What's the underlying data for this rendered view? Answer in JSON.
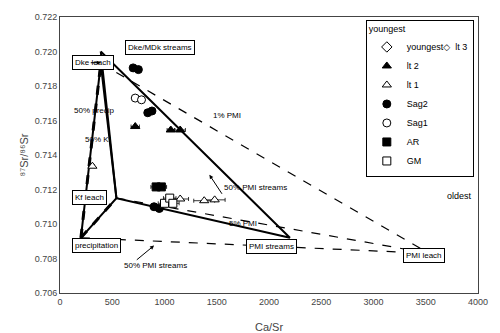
{
  "chart_data": {
    "type": "scatter",
    "xlabel": "Ca/Sr",
    "ylabel": "⁸⁷Sr/⁸⁶Sr",
    "xlim": [
      0,
      4000
    ],
    "ylim": [
      0.706,
      0.722
    ],
    "xticks": [
      0,
      500,
      1000,
      1500,
      2000,
      2500,
      3000,
      3500,
      4000
    ],
    "yticks": [
      0.706,
      0.708,
      {
        "value": 0.71,
        "label": "0.710"
      },
      0.712,
      0.714,
      0.716,
      0.718,
      {
        "value": 0.72,
        "label": "0.720"
      },
      0.722
    ],
    "grid": false,
    "legend": "upper right",
    "series": [
      {
        "type": "line",
        "line_style": "dashed",
        "color": "black",
        "x": [
          390,
          3530
        ],
        "y": [
          0.7193,
          0.7083
        ]
      },
      {
        "type": "line",
        "line_style": "dashed",
        "color": "black",
        "x": [
          540,
          3530
        ],
        "y": [
          0.7115,
          0.7083
        ]
      },
      {
        "type": "line",
        "line_style": "dashed",
        "color": "black",
        "x": [
          200,
          3530
        ],
        "y": [
          0.7092,
          0.7083
        ]
      },
      {
        "type": "line",
        "line_style": "solid",
        "color": "black",
        "x": [
          200,
          390,
          540,
          200
        ],
        "y": [
          0.7092,
          0.7193,
          0.7115,
          0.7092
        ]
      },
      {
        "type": "line",
        "line_style": "solid",
        "color": "black",
        "x": [
          390,
          2200,
          540,
          390
        ],
        "y": [
          0.72,
          0.7092,
          0.7115,
          0.72
        ]
      },
      {
        "type": "line",
        "line_style": "hatched",
        "color": "black",
        "x": [
          200,
          390
        ],
        "y": [
          0.7092,
          0.7193
        ]
      },
      {
        "type": "line",
        "line_style": "hatched",
        "color": "black",
        "x": [
          200,
          540
        ],
        "y": [
          0.7092,
          0.7115
        ]
      },
      {
        "type": "scatter",
        "name": "youngest◇  lt 3",
        "marker": "diamond",
        "color": "white",
        "x": [],
        "y": [],
        "xerr": []
      },
      {
        "type": "scatter",
        "name": "lt 2",
        "marker": "triangle",
        "color": "black",
        "x": [
          720,
          1060,
          1150
        ],
        "y": [
          0.71565,
          0.71545,
          0.71545
        ],
        "xerr": [
          40,
          35,
          50
        ]
      },
      {
        "type": "scatter",
        "name": "lt 1",
        "marker": "triangle",
        "color": "white",
        "x": [
          310,
          1150,
          1380,
          1480
        ],
        "y": [
          0.71335,
          0.71145,
          0.71135,
          0.7114
        ],
        "xerr": [
          20,
          80,
          100,
          100
        ]
      },
      {
        "type": "scatter",
        "name": "Sag2",
        "marker": "circle",
        "color": "black",
        "x": [
          700,
          750,
          840,
          880,
          900,
          950
        ],
        "y": [
          0.71905,
          0.71895,
          0.71645,
          0.71655,
          0.711,
          0.7109
        ],
        "xerr": [
          20,
          20,
          30,
          30,
          35,
          35
        ]
      },
      {
        "type": "scatter",
        "name": "Sag1",
        "marker": "circle",
        "color": "white",
        "x": [
          720,
          780
        ],
        "y": [
          0.7173,
          0.7172
        ],
        "xerr": [
          25,
          25
        ]
      },
      {
        "type": "scatter",
        "name": "AR",
        "marker": "square",
        "color": "black",
        "x": [
          920,
          970
        ],
        "y": [
          0.71215,
          0.71215
        ],
        "xerr": [
          50,
          50
        ]
      },
      {
        "type": "scatter",
        "name": "GM",
        "marker": "square",
        "color": "white",
        "x": [
          1000,
          1050,
          1080
        ],
        "y": [
          0.7112,
          0.7115,
          0.7112
        ],
        "xerr": [
          60,
          60,
          60
        ]
      }
    ],
    "annotations": [
      {
        "text": "Dke leach",
        "x": 115,
        "y": 0.71935,
        "boxed": true
      },
      {
        "xy": [
          390,
          0.71935
        ],
        "xytext": [
          280,
          0.71935
        ]
      },
      {
        "text": "Kf leach",
        "x": 115,
        "y": 0.71155,
        "boxed": true
      },
      {
        "text": "precipitation",
        "x": 115,
        "y": 0.70875,
        "boxed": true
      },
      {
        "text": "PMI streams",
        "x": 1780,
        "y": 0.7087,
        "boxed": true
      },
      {
        "text": "PMI leach",
        "x": 3280,
        "y": 0.7082,
        "boxed": true
      },
      {
        "text": "Dke/MDk streams",
        "x": 620,
        "y": 0.72025,
        "boxed": true
      },
      {
        "text": "50% precip",
        "xy": [
          295,
          0.71625
        ],
        "xytext": [
          115,
          0.7162
        ]
      },
      {
        "text": "50% Kf",
        "xy": [
          370,
          0.71525
        ],
        "xytext": [
          220,
          0.71455
        ]
      },
      {
        "text": "1% PMI",
        "x": 1445,
        "y": 0.7163
      },
      {
        "text": "50% PMI streams",
        "xy": [
          1430,
          0.71285
        ],
        "xytext": [
          1550,
          0.71175
        ]
      },
      {
        "text": "5% PMI",
        "x": 1600,
        "y": 0.71005
      },
      {
        "text": "50% PMI streams",
        "xy": [
          900,
          0.70875
        ],
        "xytext": [
          590,
          0.7072
        ]
      },
      {
        "text": "youngest"
      },
      {
        "text": "oldest"
      }
    ]
  }
}
